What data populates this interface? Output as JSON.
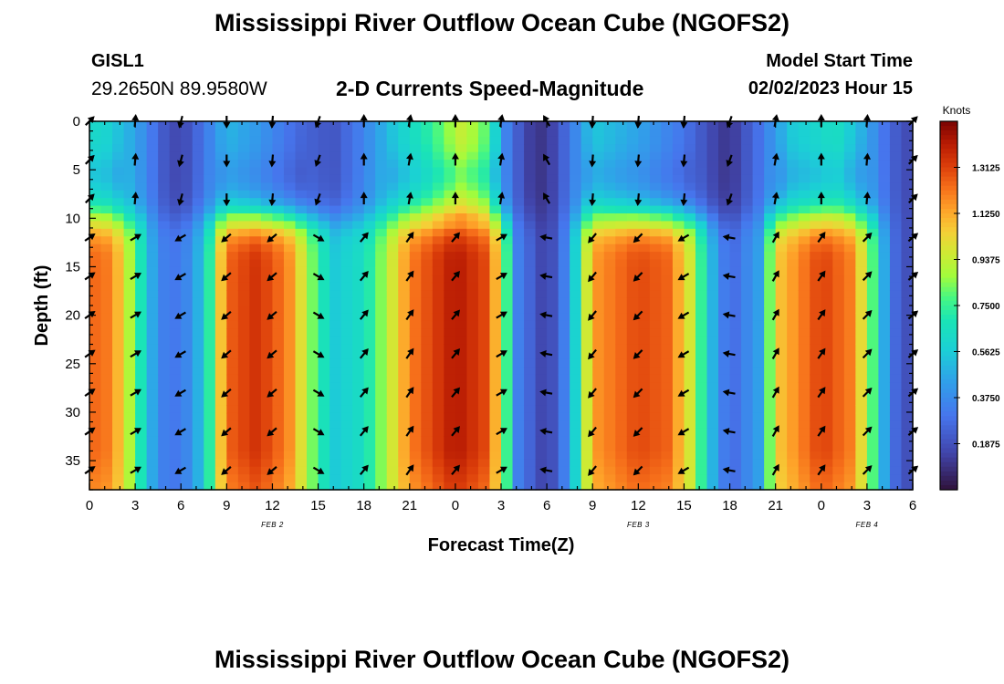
{
  "header": {
    "title": "Mississippi River Outflow Ocean Cube (NGOFS2)",
    "station": "GISL1",
    "coords": "29.2650N  89.9580W",
    "subtitle": "2-D Currents Speed-Magnitude",
    "start_label": "Model Start Time",
    "start_value": "02/02/2023 Hour 15"
  },
  "footer": {
    "title": "Mississippi River Outflow Ocean Cube (NGOFS2)"
  },
  "chart_data": {
    "type": "heatmap",
    "title": "2-D Currents Speed-Magnitude",
    "xlabel": "Forecast Time(Z)",
    "ylabel": "Depth (ft)",
    "x_range_hours": [
      0,
      54
    ],
    "x_ticks": [
      {
        "h": 0,
        "label": "0"
      },
      {
        "h": 3,
        "label": "3"
      },
      {
        "h": 6,
        "label": "6"
      },
      {
        "h": 9,
        "label": "9"
      },
      {
        "h": 12,
        "label": "12"
      },
      {
        "h": 15,
        "label": "15"
      },
      {
        "h": 18,
        "label": "18"
      },
      {
        "h": 21,
        "label": "21"
      },
      {
        "h": 24,
        "label": "0"
      },
      {
        "h": 27,
        "label": "3"
      },
      {
        "h": 30,
        "label": "6"
      },
      {
        "h": 33,
        "label": "9"
      },
      {
        "h": 36,
        "label": "12"
      },
      {
        "h": 39,
        "label": "15"
      },
      {
        "h": 42,
        "label": "18"
      },
      {
        "h": 45,
        "label": "21"
      },
      {
        "h": 48,
        "label": "0"
      },
      {
        "h": 51,
        "label": "3"
      },
      {
        "h": 54,
        "label": "6"
      }
    ],
    "date_labels": [
      {
        "h": 12,
        "label": "FEB 2"
      },
      {
        "h": 36,
        "label": "FEB 3"
      },
      {
        "h": 51,
        "label": "FEB 4"
      }
    ],
    "y_range_ft": [
      0,
      38
    ],
    "y_ticks": [
      0,
      5,
      10,
      15,
      20,
      25,
      30,
      35
    ],
    "colorbar": {
      "title": "Knots",
      "range": [
        0,
        1.5
      ],
      "ticks": [
        "1.3125",
        "1.1250",
        "0.9375",
        "0.7500",
        "0.5625",
        "0.3750",
        "0.1875"
      ],
      "tick_values": [
        1.3125,
        1.125,
        0.9375,
        0.75,
        0.5625,
        0.375,
        0.1875
      ]
    },
    "surface_layer_speed_by_hour": [
      {
        "h": 0,
        "v": 0.62
      },
      {
        "h": 1,
        "v": 0.6
      },
      {
        "h": 3,
        "v": 0.45
      },
      {
        "h": 5,
        "v": 0.2
      },
      {
        "h": 6,
        "v": 0.15
      },
      {
        "h": 7.5,
        "v": 0.3
      },
      {
        "h": 9,
        "v": 0.5
      },
      {
        "h": 11,
        "v": 0.42
      },
      {
        "h": 13,
        "v": 0.3
      },
      {
        "h": 14,
        "v": 0.25
      },
      {
        "h": 16,
        "v": 0.2
      },
      {
        "h": 18,
        "v": 0.35
      },
      {
        "h": 20,
        "v": 0.55
      },
      {
        "h": 22,
        "v": 0.7
      },
      {
        "h": 24.5,
        "v": 0.95
      },
      {
        "h": 26,
        "v": 0.8
      },
      {
        "h": 27.5,
        "v": 0.3
      },
      {
        "h": 29,
        "v": 0.12
      },
      {
        "h": 30,
        "v": 0.1
      },
      {
        "h": 31.5,
        "v": 0.3
      },
      {
        "h": 33,
        "v": 0.55
      },
      {
        "h": 36,
        "v": 0.45
      },
      {
        "h": 39,
        "v": 0.3
      },
      {
        "h": 41,
        "v": 0.15
      },
      {
        "h": 42,
        "v": 0.1
      },
      {
        "h": 44,
        "v": 0.3
      },
      {
        "h": 46,
        "v": 0.55
      },
      {
        "h": 49,
        "v": 0.65
      },
      {
        "h": 51,
        "v": 0.45
      },
      {
        "h": 52.5,
        "v": 0.25
      },
      {
        "h": 54,
        "v": 0.15
      }
    ],
    "deep_layer_speed_by_hour": [
      {
        "h": 0,
        "v": 1.25
      },
      {
        "h": 1.5,
        "v": 1.2
      },
      {
        "h": 3,
        "v": 0.8
      },
      {
        "h": 4.5,
        "v": 0.35
      },
      {
        "h": 6,
        "v": 0.3
      },
      {
        "h": 7.5,
        "v": 0.55
      },
      {
        "h": 9,
        "v": 1.25
      },
      {
        "h": 11,
        "v": 1.35
      },
      {
        "h": 13,
        "v": 1.2
      },
      {
        "h": 14.5,
        "v": 0.85
      },
      {
        "h": 16,
        "v": 0.55
      },
      {
        "h": 18,
        "v": 0.65
      },
      {
        "h": 19.5,
        "v": 0.9
      },
      {
        "h": 21,
        "v": 1.2
      },
      {
        "h": 24,
        "v": 1.42
      },
      {
        "h": 26,
        "v": 1.3
      },
      {
        "h": 27,
        "v": 1.0
      },
      {
        "h": 28,
        "v": 0.35
      },
      {
        "h": 30,
        "v": 0.12
      },
      {
        "h": 31.5,
        "v": 0.4
      },
      {
        "h": 33,
        "v": 1.15
      },
      {
        "h": 36,
        "v": 1.3
      },
      {
        "h": 38,
        "v": 1.25
      },
      {
        "h": 39.5,
        "v": 0.95
      },
      {
        "h": 41,
        "v": 0.45
      },
      {
        "h": 42,
        "v": 0.25
      },
      {
        "h": 44,
        "v": 0.45
      },
      {
        "h": 45,
        "v": 1.05
      },
      {
        "h": 48,
        "v": 1.32
      },
      {
        "h": 50,
        "v": 1.2
      },
      {
        "h": 51.5,
        "v": 0.75
      },
      {
        "h": 52.5,
        "v": 0.3
      },
      {
        "h": 54,
        "v": 0.15
      }
    ],
    "arrow_depths_ft": [
      0,
      4,
      8,
      12,
      16,
      20,
      24,
      28,
      32,
      36
    ],
    "arrow_directions_deg_by_hour": [
      {
        "h": 0,
        "shallow": 45,
        "deep": 55
      },
      {
        "h": 3,
        "shallow": 5,
        "deep": 60
      },
      {
        "h": 6,
        "shallow": 195,
        "deep": 240
      },
      {
        "h": 9,
        "shallow": 180,
        "deep": 230
      },
      {
        "h": 12,
        "shallow": 185,
        "deep": 230
      },
      {
        "h": 15,
        "shallow": 200,
        "deep": 120
      },
      {
        "h": 18,
        "shallow": 0,
        "deep": 40
      },
      {
        "h": 21,
        "shallow": 10,
        "deep": 35
      },
      {
        "h": 24,
        "shallow": 0,
        "deep": 40
      },
      {
        "h": 27,
        "shallow": 10,
        "deep": 60
      },
      {
        "h": 30,
        "shallow": 330,
        "deep": 280
      },
      {
        "h": 33,
        "shallow": 185,
        "deep": 220
      },
      {
        "h": 36,
        "shallow": 185,
        "deep": 225
      },
      {
        "h": 39,
        "shallow": 185,
        "deep": 240
      },
      {
        "h": 42,
        "shallow": 200,
        "deep": 280
      },
      {
        "h": 45,
        "shallow": 10,
        "deep": 30
      },
      {
        "h": 48,
        "shallow": 0,
        "deep": 35
      },
      {
        "h": 51,
        "shallow": 5,
        "deep": 45
      },
      {
        "h": 54,
        "shallow": 45,
        "deep": 50
      }
    ]
  }
}
